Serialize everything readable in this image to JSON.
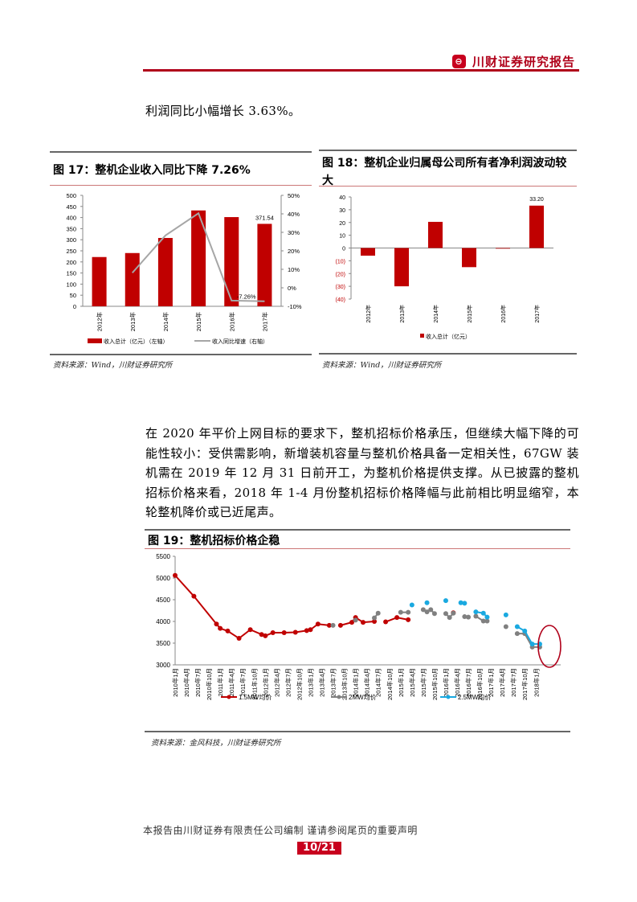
{
  "header": {
    "brand": "川财证券研究报告",
    "logo_icon": "chuancai-logo-icon",
    "accent": "#b0001a"
  },
  "intro_text": "利润同比小幅增长 3.63%。",
  "fig17": {
    "title": "图 17：整机企业收入同比下降 7.26%",
    "source": "资料来源：Wind，川财证券研究所"
  },
  "fig18": {
    "title": "图 18：整机企业归属母公司所有者净利润波动较大",
    "source": "资料来源：Wind，川财证券研究所"
  },
  "paragraph": "在 2020 年平价上网目标的要求下，整机招标价格承压，但继续大幅下降的可能性较小：受供需影响，新增装机容量与整机价格具备一定相关性，67GW 装机需在 2019 年 12 月 31 日前开工，为整机价格提供支撑。从已披露的整机招标价格来看，2018 年 1-4 月份整机招标价格降幅与此前相比明显缩窄，本轮整机降价或已近尾声。",
  "fig19": {
    "title": "图 19：整机招标价格企稳",
    "source": "资料来源：金风科技，川财证券研究所"
  },
  "footer": {
    "disclaimer": "本报告由川财证券有限责任公司编制 谨请参阅尾页的重要声明",
    "page": "10/21"
  },
  "chart_data": [
    {
      "type": "bar+line",
      "categories": [
        "2012年",
        "2013年",
        "2014年",
        "2015年",
        "2016年",
        "2017年"
      ],
      "series": [
        {
          "name": "收入总计（亿元）（左轴）",
          "type": "bar",
          "axis": "left",
          "values": [
            222,
            240,
            308,
            432,
            402,
            371.54
          ],
          "color": "#c00000"
        },
        {
          "name": "收入同比增速（右轴）",
          "type": "line",
          "axis": "right",
          "values": [
            null,
            8.1,
            28.3,
            40.3,
            -6.9,
            -7.26
          ],
          "color": "#a6a6a6"
        }
      ],
      "data_labels": {
        "bar_2017": "371.54",
        "line_2017": "-7.26%"
      },
      "ylim_left": [
        0,
        500
      ],
      "yticks_left": [
        "0",
        "50",
        "100",
        "150",
        "200",
        "250",
        "300",
        "350",
        "400",
        "450",
        "500"
      ],
      "ylim_right": [
        -10,
        50
      ],
      "yticks_right": [
        "-10%",
        "0%",
        "10%",
        "20%",
        "30%",
        "40%",
        "50%"
      ],
      "legend": "bottom"
    },
    {
      "type": "bar",
      "categories": [
        "2012年",
        "2013年",
        "2014年",
        "2015年",
        "2016年",
        "2017年"
      ],
      "series": [
        {
          "name": "收入总计（亿元）",
          "values": [
            -6,
            -30,
            20.5,
            -15,
            -0.5,
            33.2
          ],
          "color": "#c00000"
        }
      ],
      "data_labels": {
        "2017": "33.20"
      },
      "ylim": [
        -40,
        40
      ],
      "yticks": [
        "(40)",
        "(30)",
        "(20)",
        "(10)",
        "0",
        "10",
        "20",
        "30",
        "40"
      ],
      "negative_tick_color": "#c00000",
      "legend": "bottom"
    },
    {
      "type": "line",
      "ylim": [
        3000,
        5500
      ],
      "yticks": [
        "3000",
        "3500",
        "4000",
        "4500",
        "5000",
        "5500"
      ],
      "xticks": [
        "2010年1月",
        "2010年4月",
        "2010年7月",
        "2010年10月",
        "2011年1月",
        "2011年4月",
        "2011年7月",
        "2011年10月",
        "2012年1月",
        "2012年4月",
        "2012年7月",
        "2012年10月",
        "2013年1月",
        "2013年4月",
        "2013年7月",
        "2013年10月",
        "2014年1月",
        "2014年4月",
        "2014年7月",
        "2014年10月",
        "2015年1月",
        "2015年4月",
        "2015年7月",
        "2015年10月",
        "2016年1月",
        "2016年4月",
        "2016年7月",
        "2016年10月",
        "2017年1月",
        "2017年4月",
        "2017年7月",
        "2017年10月",
        "2018年1月"
      ],
      "legend": "bottom",
      "highlight": "2018 ellipse",
      "series": [
        {
          "name": "1.5MW均价",
          "color": "#c00000",
          "segments": [
            [
              [
                "2010-01",
                5060
              ],
              [
                "2010-06",
                4580
              ],
              [
                "2010-12",
                3940
              ],
              [
                "2011-01",
                3840
              ],
              [
                "2011-03",
                3780
              ],
              [
                "2011-06",
                3610
              ],
              [
                "2011-09",
                3810
              ],
              [
                "2011-12",
                3700
              ],
              [
                "2012-01",
                3670
              ],
              [
                "2012-03",
                3740
              ],
              [
                "2012-06",
                3740
              ],
              [
                "2012-09",
                3750
              ],
              [
                "2012-12",
                3790
              ],
              [
                "2013-01",
                3810
              ],
              [
                "2013-03",
                3940
              ],
              [
                "2013-06",
                3910
              ]
            ],
            [
              [
                "2013-09",
                3910
              ],
              [
                "2013-12",
                3980
              ],
              [
                "2014-01",
                4090
              ],
              [
                "2014-03",
                3980
              ],
              [
                "2014-06",
                4000
              ]
            ],
            [
              [
                "2014-09",
                3990
              ],
              [
                "2014-12",
                4090
              ],
              [
                "2015-03",
                4040
              ]
            ],
            [
              [
                "2016-03",
                4200
              ]
            ]
          ]
        },
        {
          "name": "2MW均价",
          "color": "#808080",
          "segments": [
            [
              [
                "2013-07",
                3910
              ]
            ],
            [
              [
                "2014-01",
                4030
              ]
            ],
            [
              [
                "2014-06",
                4080
              ],
              [
                "2014-07",
                4190
              ]
            ],
            [
              [
                "2015-01",
                4210
              ],
              [
                "2015-03",
                4210
              ]
            ],
            [
              [
                "2015-07",
                4270
              ],
              [
                "2015-08",
                4220
              ],
              [
                "2015-09",
                4270
              ],
              [
                "2015-10",
                4180
              ]
            ],
            [
              [
                "2016-01",
                4180
              ],
              [
                "2016-02",
                4090
              ],
              [
                "2016-03",
                4190
              ]
            ],
            [
              [
                "2016-06",
                4110
              ],
              [
                "2016-07",
                4100
              ]
            ],
            [
              [
                "2016-09",
                4120
              ],
              [
                "2016-11",
                4010
              ],
              [
                "2016-12",
                4010
              ]
            ],
            [
              [
                "2017-05",
                3880
              ]
            ],
            [
              [
                "2017-08",
                3720
              ],
              [
                "2017-10",
                3720
              ],
              [
                "2017-12",
                3410
              ],
              [
                "2018-02",
                3410
              ]
            ]
          ]
        },
        {
          "name": "2.5MW均价",
          "color": "#1aa9e0",
          "segments": [
            [
              [
                "2015-04",
                4380
              ]
            ],
            [
              [
                "2015-08",
                4430
              ]
            ],
            [
              [
                "2016-01",
                4480
              ]
            ],
            [
              [
                "2016-05",
                4430
              ],
              [
                "2016-06",
                4420
              ]
            ],
            [
              [
                "2016-09",
                4220
              ],
              [
                "2016-11",
                4190
              ],
              [
                "2016-12",
                4100
              ]
            ],
            [
              [
                "2017-05",
                4150
              ]
            ],
            [
              [
                "2017-08",
                3880
              ],
              [
                "2017-10",
                3780
              ],
              [
                "2017-12",
                3480
              ],
              [
                "2018-02",
                3480
              ]
            ]
          ]
        }
      ]
    }
  ]
}
